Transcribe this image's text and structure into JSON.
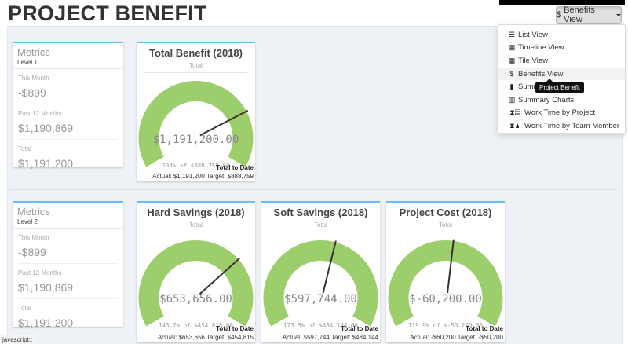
{
  "page": {
    "title": "PROJECT BENEFIT"
  },
  "toolbar": {
    "view_button_icon": "$",
    "view_button_label": "Benefits View"
  },
  "menu": {
    "items": [
      {
        "icon": "list-icon",
        "glyph": "☰",
        "label": "List View"
      },
      {
        "icon": "calendar-icon",
        "glyph": "▦",
        "label": "Timeline View"
      },
      {
        "icon": "tiles-icon",
        "glyph": "▦",
        "label": "Tile View"
      },
      {
        "icon": "dollar-icon",
        "glyph": "$",
        "label": "Benefits View"
      },
      {
        "icon": "file-icon",
        "glyph": "▮",
        "label": "Summary View"
      },
      {
        "icon": "bar-chart-icon",
        "glyph": "▥",
        "label": "Summary Charts"
      },
      {
        "icon": "hourglass-project-icon",
        "glyph": "⧗▤",
        "label": "Work Time by Project"
      },
      {
        "icon": "hourglass-user-icon",
        "glyph": "⧗♟",
        "label": "Work Time by Team Member"
      }
    ],
    "active_index": 3,
    "tooltip": "Project Benefit"
  },
  "level1": {
    "metrics": {
      "title": "Metrics",
      "level": "Level 1",
      "rows": [
        {
          "label": "This Month",
          "value": "-$899"
        },
        {
          "label": "Past 12 Months",
          "value": "$1,190,869"
        },
        {
          "label": "Total",
          "value": "$1,191,200"
        }
      ]
    },
    "gauges": [
      {
        "title": "Total Benefit (2018)",
        "subtitle": "Total",
        "value": "$1,191,200.00",
        "percent_text": "134% of $888,759.00",
        "foot_title": "Total to Date",
        "foot_detail": "Actual: $1,191,200 Target: $888,759",
        "needle_deg": 28
      }
    ]
  },
  "level2": {
    "metrics": {
      "title": "Metrics",
      "level": "Level 2",
      "rows": [
        {
          "label": "This Month",
          "value": "-$899"
        },
        {
          "label": "Past 12 Months",
          "value": "$1,190,869"
        },
        {
          "label": "Total",
          "value": "$1,191,200"
        }
      ]
    },
    "gauges": [
      {
        "title": "Hard Savings (2018)",
        "subtitle": "Total",
        "value": "$653,656.00",
        "percent_text": "143.7% of $454,815.00",
        "foot_title": "Total to Date",
        "foot_detail": "Actual: $653,656 Target: $454,815",
        "needle_deg": 42
      },
      {
        "title": "Soft Savings (2018)",
        "subtitle": "Total",
        "value": "$597,744.00",
        "percent_text": "123.5% of $484,144.00",
        "foot_title": "Total to Date",
        "foot_detail": "Actual: $597,744 Target: $484,144",
        "needle_deg": 75
      },
      {
        "title": "Project Cost (2018)",
        "subtitle": "Total",
        "value": "$-60,200.00",
        "percent_text": "119.9% of $-50,200.00",
        "foot_title": "Total to Date",
        "foot_detail": "Actual: -$60,200 Target: -$50,200",
        "needle_deg": 82
      }
    ]
  },
  "colors": {
    "gauge_fill": "#9ccf6b",
    "needle": "#3a2f2f",
    "card_accent": "#6cbdf0",
    "panel_bg": "#eef1f5"
  },
  "status_bar": {
    "text": "javascript:;"
  }
}
